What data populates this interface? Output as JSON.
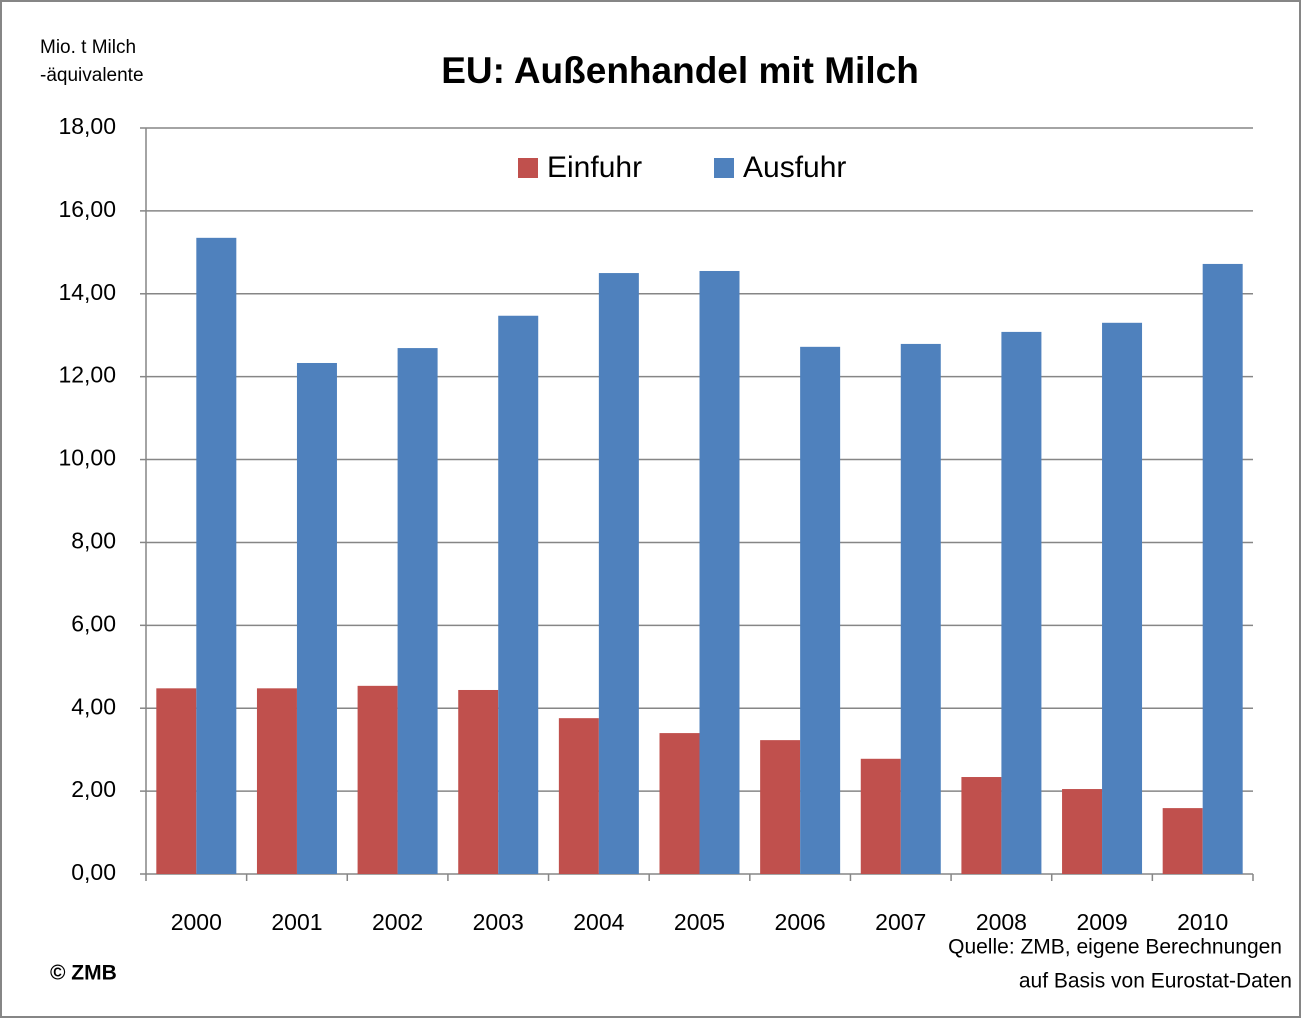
{
  "chart_data": {
    "type": "bar",
    "title": "EU: Außenhandel mit Milch",
    "ylabel": [
      "Mio. t Milch",
      "-äquivalente"
    ],
    "categories": [
      "2000",
      "2001",
      "2002",
      "2003",
      "2004",
      "2005",
      "2006",
      "2007",
      "2008",
      "2009",
      "2010"
    ],
    "series": [
      {
        "name": "Einfuhr",
        "color": "#c0504d",
        "values": [
          4.48,
          4.48,
          4.54,
          4.44,
          3.76,
          3.4,
          3.23,
          2.78,
          2.34,
          2.05,
          1.59
        ]
      },
      {
        "name": "Ausfuhr",
        "color": "#4f81bd",
        "values": [
          15.35,
          12.33,
          12.69,
          13.47,
          14.5,
          14.55,
          12.72,
          12.79,
          13.08,
          13.3,
          14.72
        ]
      }
    ],
    "ylim": [
      0,
      18
    ],
    "yticks": [
      {
        "value": 0,
        "label": "0,00"
      },
      {
        "value": 2,
        "label": "2,00"
      },
      {
        "value": 4,
        "label": "4,00"
      },
      {
        "value": 6,
        "label": "6,00"
      },
      {
        "value": 8,
        "label": "8,00"
      },
      {
        "value": 10,
        "label": "10,00"
      },
      {
        "value": 12,
        "label": "12,00"
      },
      {
        "value": 14,
        "label": "14,00"
      },
      {
        "value": 16,
        "label": "16,00"
      },
      {
        "value": 18,
        "label": "18,00"
      }
    ],
    "grid": true,
    "legend": "top",
    "source": [
      "Quelle: ZMB, eigene Berechnungen",
      "auf Basis von Eurostat-Daten"
    ],
    "copyright": "© ZMB"
  }
}
